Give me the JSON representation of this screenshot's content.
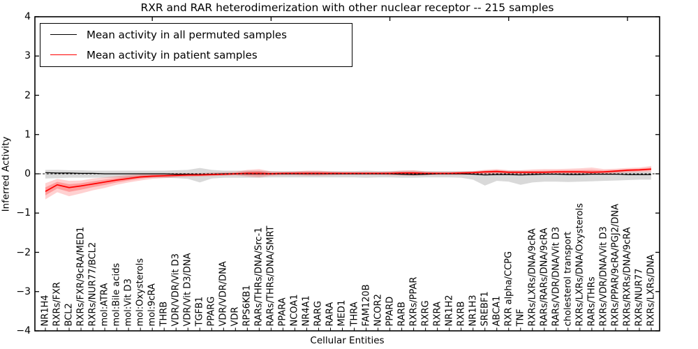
{
  "figure": {
    "title": "RXR and RAR heterodimerization with other nuclear receptor -- 215 samples",
    "xlabel": "Cellular Entities",
    "ylabel": "Inferred Activity",
    "legend": [
      {
        "label": "Mean activity in all permuted samples",
        "color": "#000000"
      },
      {
        "label": "Mean activity in patient samples",
        "color": "#ff0000"
      }
    ],
    "ytick_labels": [
      "4",
      "3",
      "2",
      "1",
      "0",
      "−1",
      "−2",
      "−3",
      "−4"
    ],
    "colors": {
      "permuted_line": "#000000",
      "patient_line": "#ff0000",
      "permuted_band": "rgba(0,0,0,0.15)",
      "patient_band": "rgba(255,0,0,0.18)",
      "patient_band_inner": "rgba(255,0,0,0.25)",
      "background": "#ffffff"
    }
  },
  "chart_data": {
    "type": "line",
    "title": "RXR and RAR heterodimerization with other nuclear receptor -- 215 samples",
    "xlabel": "Cellular Entities",
    "ylabel": "Inferred Activity",
    "ylim": [
      -4,
      4
    ],
    "yticks": [
      4,
      3,
      2,
      1,
      0,
      -1,
      -2,
      -3,
      -4
    ],
    "xticks_top": [
      10,
      20,
      30,
      40,
      50
    ],
    "grid": false,
    "legend_position": "upper left",
    "zero_line": {
      "y": 0,
      "style": "dashed",
      "color": "#000000"
    },
    "categories": [
      "NR1H4",
      "RXRs/FXR",
      "BCL2",
      "RXRs/FXR/9cRA/MED1",
      "RXRs/NUR77/BCL2",
      "mol:ATRA",
      "mol:Bile acids",
      "mol:Vit D3",
      "mol:Oxysterols",
      "mol:9cRA",
      "THRB",
      "VDR/VDR/Vit D3",
      "VDR/Vit D3/DNA",
      "TGFB1",
      "PPARG",
      "VDR/VDR/DNA",
      "VDR",
      "RPS6KB1",
      "RARs/THRs/DNA/Src-1",
      "RARs/THRs/DNA/SMRT",
      "PPARA",
      "NCOA1",
      "NR4A1",
      "RARG",
      "RARA",
      "MED1",
      "THRA",
      "FAM120B",
      "NCOR2",
      "PPARD",
      "RARB",
      "RXRs/PPAR",
      "RXRG",
      "RXRA",
      "NR1H2",
      "RXRB",
      "NR1H3",
      "SREBF1",
      "ABCA1",
      "RXR alpha/CCPG",
      "TNF",
      "RXRs/LXRs/DNA/9cRA",
      "RARs/RARs/DNA/9cRA",
      "RARs/VDR/DNA/Vit D3",
      "cholesterol transport",
      "RXRs/LXRs/DNA/Oxysterols",
      "RARs/THRs",
      "RXRs/VDR/DNA/Vit D3",
      "RXRs/PPAR/9cRA/PGJ2/DNA",
      "RXRs/RXRs/DNA/9cRA",
      "RXRs/NUR77",
      "RXRs/LXRs/DNA"
    ],
    "series": [
      {
        "name": "Mean activity in all permuted samples",
        "color": "#000000",
        "values": [
          0.03,
          0.02,
          0.02,
          0.01,
          0.01,
          0,
          0,
          0,
          0,
          0,
          0,
          -0.01,
          -0.01,
          -0.02,
          -0.01,
          0,
          0,
          0,
          0,
          0,
          0,
          0,
          0,
          0,
          0,
          0,
          0,
          0,
          0,
          0,
          -0.01,
          -0.02,
          -0.01,
          0,
          0,
          0,
          -0.01,
          -0.03,
          -0.02,
          -0.02,
          -0.03,
          -0.02,
          -0.01,
          -0.01,
          -0.02,
          -0.02,
          -0.01,
          -0.01,
          -0.01,
          -0.02,
          -0.02,
          -0.02
        ],
        "band_upper": [
          0.1,
          0.1,
          0.09,
          0.09,
          0.08,
          0.08,
          0.08,
          0.08,
          0.08,
          0.08,
          0.08,
          0.09,
          0.1,
          0.15,
          0.1,
          0.08,
          0.08,
          0.08,
          0.08,
          0.07,
          0.07,
          0.07,
          0.07,
          0.07,
          0.07,
          0.07,
          0.07,
          0.08,
          0.07,
          0.07,
          0.08,
          0.08,
          0.07,
          0.07,
          0.07,
          0.07,
          0.07,
          0.08,
          0.08,
          0.08,
          0.08,
          0.07,
          0.07,
          0.07,
          0.07,
          0.07,
          0.07,
          0.06,
          0.06,
          0.06,
          0.06,
          0.06
        ],
        "band_lower": [
          -0.12,
          -0.11,
          -0.1,
          -0.1,
          -0.1,
          -0.1,
          -0.1,
          -0.1,
          -0.1,
          -0.1,
          -0.1,
          -0.11,
          -0.13,
          -0.22,
          -0.12,
          -0.1,
          -0.1,
          -0.1,
          -0.1,
          -0.09,
          -0.09,
          -0.09,
          -0.09,
          -0.09,
          -0.09,
          -0.09,
          -0.09,
          -0.1,
          -0.09,
          -0.09,
          -0.1,
          -0.1,
          -0.09,
          -0.09,
          -0.09,
          -0.1,
          -0.15,
          -0.3,
          -0.18,
          -0.2,
          -0.28,
          -0.22,
          -0.2,
          -0.2,
          -0.21,
          -0.2,
          -0.19,
          -0.18,
          -0.17,
          -0.16,
          -0.15,
          -0.15
        ]
      },
      {
        "name": "Mean activity in patient samples",
        "color": "#ff0000",
        "values": [
          -0.45,
          -0.28,
          -0.35,
          -0.31,
          -0.26,
          -0.21,
          -0.16,
          -0.12,
          -0.08,
          -0.06,
          -0.05,
          -0.04,
          -0.03,
          -0.03,
          -0.02,
          -0.01,
          0,
          0.01,
          0.01,
          0,
          0.01,
          0.01,
          0.01,
          0.01,
          0.01,
          0.01,
          0.01,
          0.01,
          0.01,
          0.01,
          0.02,
          0.02,
          0.01,
          0.01,
          0.01,
          0.02,
          0.03,
          0.05,
          0.06,
          0.04,
          0.04,
          0.04,
          0.04,
          0.05,
          0.05,
          0.05,
          0.04,
          0.05,
          0.07,
          0.09,
          0.1,
          0.12
        ],
        "band_upper": [
          -0.24,
          -0.13,
          -0.18,
          -0.17,
          -0.12,
          -0.09,
          -0.06,
          -0.03,
          -0.01,
          0,
          0.01,
          0.02,
          0.02,
          0.02,
          0.03,
          0.04,
          0.05,
          0.1,
          0.12,
          0.06,
          0.05,
          0.06,
          0.08,
          0.08,
          0.06,
          0.05,
          0.05,
          0.05,
          0.05,
          0.06,
          0.08,
          0.09,
          0.06,
          0.05,
          0.05,
          0.06,
          0.07,
          0.1,
          0.12,
          0.09,
          0.09,
          0.11,
          0.12,
          0.12,
          0.13,
          0.14,
          0.16,
          0.12,
          0.13,
          0.15,
          0.16,
          0.2
        ],
        "band_lower": [
          -0.65,
          -0.47,
          -0.57,
          -0.5,
          -0.42,
          -0.36,
          -0.28,
          -0.22,
          -0.17,
          -0.13,
          -0.11,
          -0.09,
          -0.08,
          -0.07,
          -0.06,
          -0.05,
          -0.04,
          -0.07,
          -0.09,
          -0.05,
          -0.04,
          -0.04,
          -0.05,
          -0.05,
          -0.04,
          -0.03,
          -0.03,
          -0.03,
          -0.03,
          -0.04,
          -0.05,
          -0.05,
          -0.04,
          -0.03,
          -0.03,
          -0.03,
          -0.02,
          -0.02,
          -0.01,
          -0.02,
          -0.02,
          -0.02,
          -0.01,
          -0.01,
          -0.01,
          -0.01,
          -0.02,
          -0.01,
          0.01,
          0.03,
          0.04,
          0.05
        ]
      }
    ]
  }
}
